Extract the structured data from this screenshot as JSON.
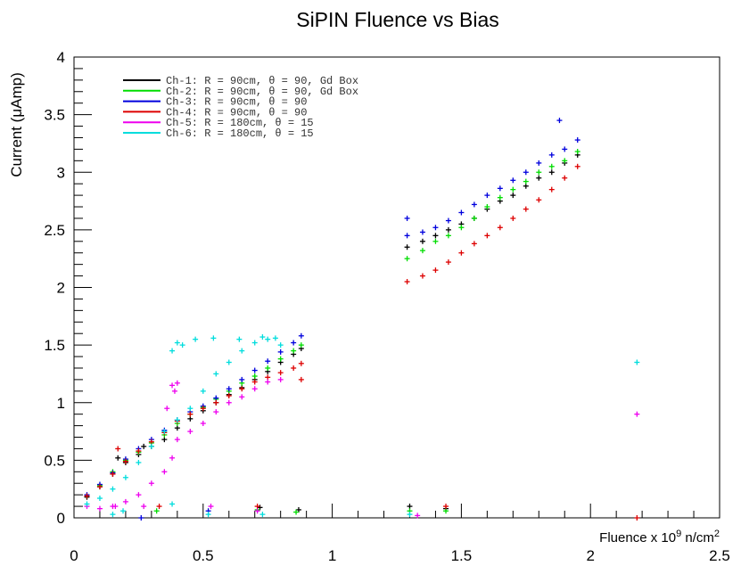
{
  "chart_data": {
    "type": "scatter",
    "title": "SiPIN Fluence vs Bias",
    "xlabel": "Fluence x 10",
    "xlabel_sup": "9",
    "xlabel_unit": " n/cm",
    "xlabel_unit_sup": "2",
    "ylabel": "Current (μAmp)",
    "xlim": [
      0,
      2.5
    ],
    "ylim": [
      0,
      4
    ],
    "x_ticks": [
      0,
      0.5,
      1,
      1.5,
      2,
      2.5
    ],
    "x_tick_labels": [
      "0",
      "0.5",
      "1",
      "1.5",
      "2",
      "2.5"
    ],
    "y_ticks": [
      0,
      0.5,
      1,
      1.5,
      2,
      2.5,
      3,
      3.5,
      4
    ],
    "y_tick_labels": [
      "0",
      "0.5",
      "1",
      "1.5",
      "2",
      "2.5",
      "3",
      "3.5",
      "4"
    ],
    "grid": false,
    "legend_position": "top-left",
    "marker": "+",
    "series": [
      {
        "name": "Ch-1: R = 90cm, θ = 90, Gd Box",
        "color": "#000000",
        "points": [
          [
            0.05,
            0.18
          ],
          [
            0.1,
            0.27
          ],
          [
            0.15,
            0.38
          ],
          [
            0.2,
            0.48
          ],
          [
            0.25,
            0.55
          ],
          [
            0.3,
            0.62
          ],
          [
            0.35,
            0.68
          ],
          [
            0.4,
            0.78
          ],
          [
            0.45,
            0.86
          ],
          [
            0.5,
            0.93
          ],
          [
            0.55,
            1.0
          ],
          [
            0.6,
            1.07
          ],
          [
            0.65,
            1.13
          ],
          [
            0.7,
            1.2
          ],
          [
            0.75,
            1.27
          ],
          [
            0.8,
            1.35
          ],
          [
            0.85,
            1.42
          ],
          [
            0.88,
            1.47
          ],
          [
            1.29,
            2.35
          ],
          [
            1.35,
            2.4
          ],
          [
            1.4,
            2.45
          ],
          [
            1.45,
            2.5
          ],
          [
            1.5,
            2.55
          ],
          [
            1.55,
            2.6
          ],
          [
            1.6,
            2.68
          ],
          [
            1.65,
            2.75
          ],
          [
            1.7,
            2.8
          ],
          [
            1.75,
            2.88
          ],
          [
            1.8,
            2.95
          ],
          [
            1.85,
            3.0
          ],
          [
            1.9,
            3.08
          ],
          [
            1.95,
            3.15
          ],
          [
            0.17,
            0.52
          ],
          [
            0.27,
            0.62
          ],
          [
            0.72,
            0.09
          ],
          [
            0.87,
            0.07
          ],
          [
            1.3,
            0.1
          ],
          [
            1.44,
            0.08
          ]
        ]
      },
      {
        "name": "Ch-2: R = 90cm, θ = 90, Gd Box",
        "color": "#00dd00",
        "points": [
          [
            0.05,
            0.19
          ],
          [
            0.1,
            0.28
          ],
          [
            0.15,
            0.4
          ],
          [
            0.2,
            0.5
          ],
          [
            0.25,
            0.57
          ],
          [
            0.3,
            0.65
          ],
          [
            0.35,
            0.72
          ],
          [
            0.4,
            0.82
          ],
          [
            0.45,
            0.9
          ],
          [
            0.5,
            0.96
          ],
          [
            0.55,
            1.03
          ],
          [
            0.6,
            1.1
          ],
          [
            0.65,
            1.17
          ],
          [
            0.7,
            1.23
          ],
          [
            0.75,
            1.3
          ],
          [
            0.8,
            1.38
          ],
          [
            0.85,
            1.45
          ],
          [
            0.88,
            1.5
          ],
          [
            1.29,
            2.25
          ],
          [
            1.35,
            2.32
          ],
          [
            1.4,
            2.4
          ],
          [
            1.45,
            2.45
          ],
          [
            1.5,
            2.52
          ],
          [
            1.55,
            2.6
          ],
          [
            1.6,
            2.7
          ],
          [
            1.65,
            2.78
          ],
          [
            1.7,
            2.85
          ],
          [
            1.75,
            2.92
          ],
          [
            1.8,
            3.0
          ],
          [
            1.85,
            3.05
          ],
          [
            1.9,
            3.1
          ],
          [
            1.95,
            3.18
          ],
          [
            0.32,
            0.06
          ],
          [
            0.71,
            0.07
          ],
          [
            0.86,
            0.05
          ],
          [
            1.3,
            0.06
          ],
          [
            1.44,
            0.06
          ]
        ]
      },
      {
        "name": "Ch-3: R = 90cm, θ = 90",
        "color": "#0000dd",
        "points": [
          [
            0.05,
            0.2
          ],
          [
            0.1,
            0.29
          ],
          [
            0.15,
            0.39
          ],
          [
            0.2,
            0.51
          ],
          [
            0.25,
            0.6
          ],
          [
            0.3,
            0.68
          ],
          [
            0.35,
            0.76
          ],
          [
            0.4,
            0.85
          ],
          [
            0.45,
            0.92
          ],
          [
            0.5,
            0.97
          ],
          [
            0.55,
            1.04
          ],
          [
            0.6,
            1.12
          ],
          [
            0.65,
            1.2
          ],
          [
            0.7,
            1.28
          ],
          [
            0.75,
            1.36
          ],
          [
            0.8,
            1.44
          ],
          [
            0.85,
            1.52
          ],
          [
            0.88,
            1.58
          ],
          [
            1.29,
            2.45
          ],
          [
            1.35,
            2.48
          ],
          [
            1.4,
            2.52
          ],
          [
            1.45,
            2.58
          ],
          [
            1.5,
            2.65
          ],
          [
            1.55,
            2.72
          ],
          [
            1.6,
            2.8
          ],
          [
            1.65,
            2.86
          ],
          [
            1.7,
            2.93
          ],
          [
            1.75,
            3.0
          ],
          [
            1.8,
            3.08
          ],
          [
            1.85,
            3.15
          ],
          [
            1.9,
            3.2
          ],
          [
            1.95,
            3.28
          ],
          [
            0.26,
            0.0
          ],
          [
            0.52,
            0.06
          ],
          [
            1.29,
            2.6
          ],
          [
            1.88,
            3.45
          ]
        ]
      },
      {
        "name": "Ch-4: R = 90cm, θ = 90",
        "color": "#dd0000",
        "points": [
          [
            0.05,
            0.19
          ],
          [
            0.1,
            0.27
          ],
          [
            0.15,
            0.38
          ],
          [
            0.2,
            0.49
          ],
          [
            0.25,
            0.58
          ],
          [
            0.3,
            0.66
          ],
          [
            0.35,
            0.74
          ],
          [
            0.4,
            0.84
          ],
          [
            0.45,
            0.9
          ],
          [
            0.5,
            0.95
          ],
          [
            0.55,
            1.0
          ],
          [
            0.6,
            1.06
          ],
          [
            0.65,
            1.12
          ],
          [
            0.7,
            1.18
          ],
          [
            0.75,
            1.22
          ],
          [
            0.8,
            1.26
          ],
          [
            0.85,
            1.3
          ],
          [
            0.88,
            1.34
          ],
          [
            1.29,
            2.05
          ],
          [
            1.35,
            2.1
          ],
          [
            1.4,
            2.15
          ],
          [
            1.45,
            2.22
          ],
          [
            1.5,
            2.3
          ],
          [
            1.55,
            2.38
          ],
          [
            1.6,
            2.45
          ],
          [
            1.65,
            2.52
          ],
          [
            1.7,
            2.6
          ],
          [
            1.75,
            2.68
          ],
          [
            1.8,
            2.76
          ],
          [
            1.85,
            2.85
          ],
          [
            1.9,
            2.95
          ],
          [
            1.95,
            3.05
          ],
          [
            0.17,
            0.6
          ],
          [
            0.88,
            1.2
          ],
          [
            0.33,
            0.1
          ],
          [
            0.71,
            0.1
          ],
          [
            1.44,
            0.1
          ],
          [
            2.18,
            0.0
          ]
        ]
      },
      {
        "name": "Ch-5: R = 180cm, θ = 15",
        "color": "#ee00ee",
        "points": [
          [
            0.05,
            0.1
          ],
          [
            0.1,
            0.08
          ],
          [
            0.15,
            0.1
          ],
          [
            0.2,
            0.14
          ],
          [
            0.25,
            0.2
          ],
          [
            0.3,
            0.3
          ],
          [
            0.35,
            0.4
          ],
          [
            0.38,
            0.52
          ],
          [
            0.4,
            0.68
          ],
          [
            0.45,
            0.75
          ],
          [
            0.5,
            0.82
          ],
          [
            0.55,
            0.92
          ],
          [
            0.6,
            1.0
          ],
          [
            0.65,
            1.05
          ],
          [
            0.7,
            1.12
          ],
          [
            0.75,
            1.18
          ],
          [
            0.8,
            1.2
          ],
          [
            0.38,
            1.15
          ],
          [
            0.39,
            1.1
          ],
          [
            0.4,
            1.17
          ],
          [
            0.36,
            0.95
          ],
          [
            0.16,
            0.1
          ],
          [
            0.27,
            0.1
          ],
          [
            0.53,
            0.1
          ],
          [
            0.71,
            0.06
          ],
          [
            1.33,
            0.02
          ],
          [
            2.18,
            0.9
          ]
        ]
      },
      {
        "name": "Ch-6: R = 180cm, θ = 15",
        "color": "#00dddd",
        "points": [
          [
            0.05,
            0.12
          ],
          [
            0.1,
            0.17
          ],
          [
            0.15,
            0.25
          ],
          [
            0.2,
            0.35
          ],
          [
            0.25,
            0.48
          ],
          [
            0.3,
            0.62
          ],
          [
            0.35,
            0.75
          ],
          [
            0.4,
            0.85
          ],
          [
            0.45,
            0.95
          ],
          [
            0.5,
            1.1
          ],
          [
            0.55,
            1.25
          ],
          [
            0.6,
            1.35
          ],
          [
            0.65,
            1.45
          ],
          [
            0.7,
            1.52
          ],
          [
            0.75,
            1.55
          ],
          [
            0.8,
            1.5
          ],
          [
            0.38,
            1.45
          ],
          [
            0.4,
            1.52
          ],
          [
            0.42,
            1.5
          ],
          [
            0.47,
            1.55
          ],
          [
            0.54,
            1.56
          ],
          [
            0.64,
            1.55
          ],
          [
            0.73,
            1.57
          ],
          [
            0.78,
            1.56
          ],
          [
            0.15,
            0.03
          ],
          [
            0.19,
            0.06
          ],
          [
            0.38,
            0.12
          ],
          [
            0.52,
            0.03
          ],
          [
            0.73,
            0.03
          ],
          [
            1.3,
            0.03
          ],
          [
            2.18,
            1.35
          ]
        ]
      }
    ]
  }
}
